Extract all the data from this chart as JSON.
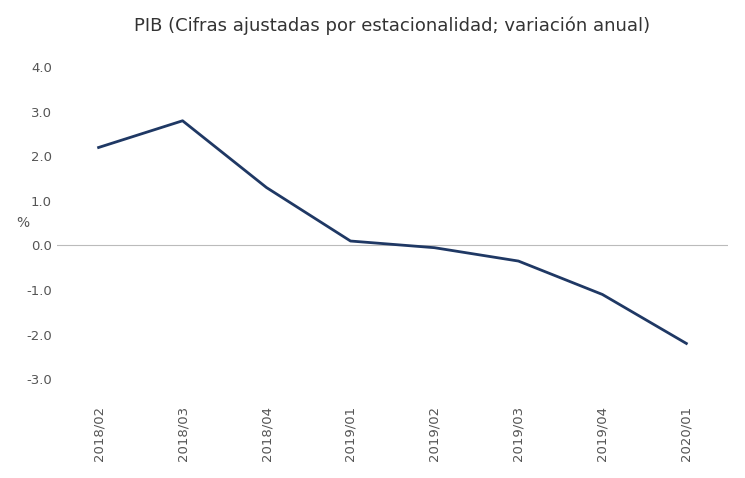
{
  "title": "PIB (Cifras ajustadas por estacionalidad; variación anual)",
  "x_labels": [
    "2018/02",
    "2018/03",
    "2018/04",
    "2019/01",
    "2019/02",
    "2019/03",
    "2019/04",
    "2020/01"
  ],
  "y_values": [
    2.2,
    2.8,
    1.3,
    0.1,
    -0.05,
    -0.35,
    -1.1,
    -2.2
  ],
  "ylim": [
    -3.5,
    4.5
  ],
  "yticks": [
    -3.0,
    -2.0,
    -1.0,
    0.0,
    1.0,
    2.0,
    3.0,
    4.0
  ],
  "line_color": "#1F3864",
  "line_width": 2.0,
  "ylabel": "%",
  "background_color": "#ffffff",
  "title_fontsize": 13,
  "tick_fontsize": 9.5,
  "ylabel_fontsize": 10
}
